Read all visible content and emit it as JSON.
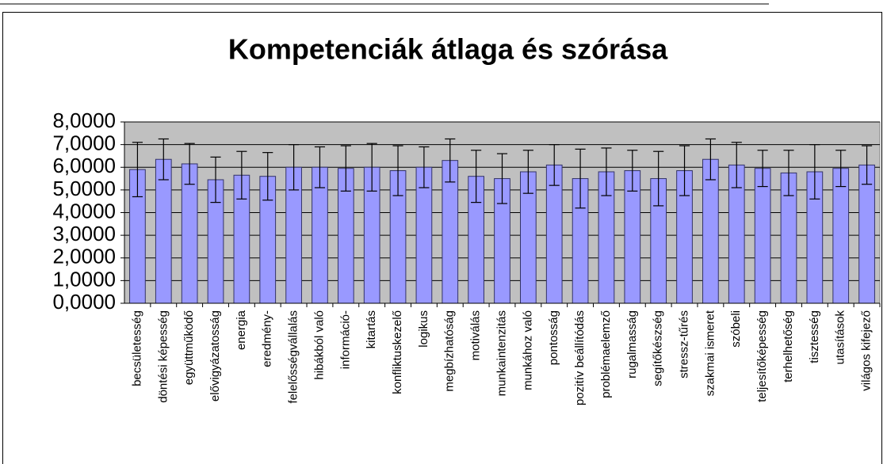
{
  "chart_data": {
    "type": "bar",
    "title": "Kompetenciák átlaga és szórása",
    "categories": [
      "becsületesség",
      "döntési képesség",
      "együttműködő",
      "elővigyázatosság",
      "energia",
      "eredmény-",
      "felelősségvállalás",
      "hibákból való",
      "információ-",
      "kitartás",
      "konfliktuskezelő",
      "logikus",
      "megbízhatóság",
      "motiválás",
      "munkaintenzitás",
      "munkához való",
      "pontosság",
      "pozitív beállítódás",
      "problémaelemző",
      "rugalmasság",
      "segítőkészség",
      "stressz-tűrés",
      "szakmai ismeret",
      "szóbeli",
      "teljesítőképesség",
      "terhelhetőség",
      "tisztesség",
      "utasítások",
      "világos kifejező"
    ],
    "values": [
      5.9,
      6.35,
      6.15,
      5.45,
      5.65,
      5.6,
      6.0,
      6.0,
      5.95,
      6.0,
      5.85,
      6.0,
      6.3,
      5.6,
      5.5,
      5.8,
      6.1,
      5.5,
      5.8,
      5.85,
      5.5,
      5.85,
      6.35,
      6.1,
      5.95,
      5.75,
      5.8,
      5.95,
      6.1
    ],
    "errors": [
      1.2,
      0.9,
      0.9,
      1.0,
      1.05,
      1.05,
      1.0,
      0.9,
      1.0,
      1.05,
      1.1,
      0.9,
      0.95,
      1.15,
      1.1,
      0.95,
      0.9,
      1.3,
      1.05,
      0.9,
      1.2,
      1.1,
      0.9,
      1.0,
      0.8,
      1.0,
      1.2,
      0.8,
      0.85
    ],
    "color": "#9999ff",
    "ylim": [
      0,
      8
    ],
    "yticks": [
      {
        "value": 0,
        "label": "0,0000"
      },
      {
        "value": 1,
        "label": "1,0000"
      },
      {
        "value": 2,
        "label": "2,0000"
      },
      {
        "value": 3,
        "label": "3,0000"
      },
      {
        "value": 4,
        "label": "4,0000"
      },
      {
        "value": 5,
        "label": "5,0000"
      },
      {
        "value": 6,
        "label": "6,0000"
      },
      {
        "value": 7,
        "label": "7,0000"
      },
      {
        "value": 8,
        "label": "8,0000"
      }
    ],
    "grid": true
  }
}
